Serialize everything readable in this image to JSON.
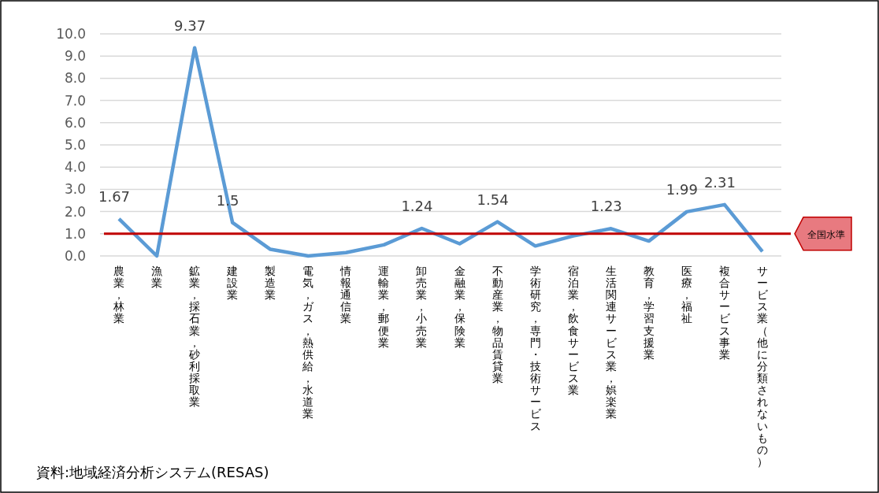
{
  "chart_data": {
    "type": "line",
    "categories": [
      "農業，林業",
      "漁業",
      "鉱業，採石業，砂利採取業",
      "建設業",
      "製造業",
      "電気，ガス，熱供給，水道業",
      "情報通信業",
      "運輸業，郵便業",
      "卸売業，小売業",
      "金融業，保険業",
      "不動産業，物品賃貸業",
      "学術研究，専門・技術サービス",
      "宿泊業，飲食サービス業",
      "生活関連サービス業，娯楽業",
      "教育，学習支援業",
      "医療，福祉",
      "複合サービス事業",
      "サービス業（他に分類されないもの）"
    ],
    "series": [
      {
        "color": "#5b9bd5",
        "values": [
          1.67,
          0.0,
          9.37,
          1.5,
          0.3,
          0.0,
          0.15,
          0.5,
          1.24,
          0.55,
          1.54,
          0.45,
          0.9,
          1.23,
          0.67,
          1.99,
          2.31,
          0.2
        ],
        "value_labels": [
          "1.67",
          null,
          "9.37",
          "1.5",
          null,
          null,
          null,
          null,
          "1.24",
          null,
          "1.54",
          null,
          null,
          "1.23",
          null,
          "1.99",
          "2.31",
          null
        ]
      }
    ],
    "ylim": [
      0,
      10
    ],
    "yticks": [
      {
        "value": 0,
        "label": "0.0"
      },
      {
        "value": 1,
        "label": "1.0"
      },
      {
        "value": 2,
        "label": "2.0"
      },
      {
        "value": 3,
        "label": "3.0"
      },
      {
        "value": 4,
        "label": "4.0"
      },
      {
        "value": 5,
        "label": "5.0"
      },
      {
        "value": 6,
        "label": "6.0"
      },
      {
        "value": 7,
        "label": "7.0"
      },
      {
        "value": 8,
        "label": "8.0"
      },
      {
        "value": 9,
        "label": "9.0"
      },
      {
        "value": 10,
        "label": "10.0"
      }
    ],
    "grid": "y",
    "marker": "none",
    "line_style": "solid",
    "ref_lines": [
      {
        "axis": "y",
        "value": 1,
        "label": "全国水準",
        "color": "#c00000"
      }
    ],
    "annotations": [
      "資料:地域経済分析システム(RESAS)"
    ]
  }
}
